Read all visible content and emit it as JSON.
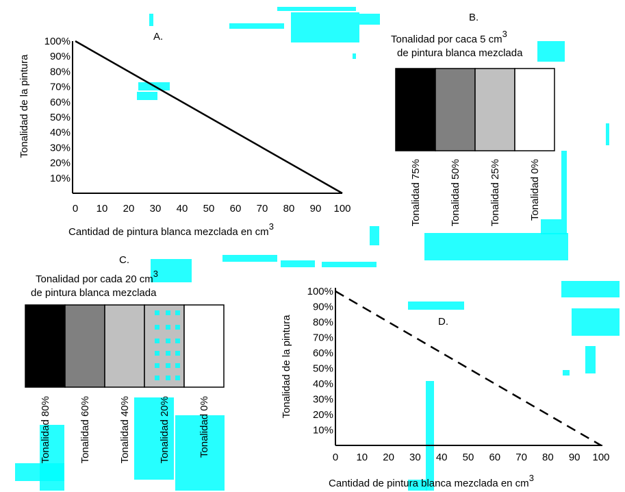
{
  "panels": {
    "a": {
      "letter": "A.",
      "y_label": "Tonalidad de la pintura",
      "x_label": "Cantidad de pintura blanca mezclada en cm",
      "x_label_sup": "3",
      "y_ticks": [
        "100%",
        "90%",
        "80%",
        "70%",
        "60%",
        "50%",
        "40%",
        "30%",
        "20%",
        "10%"
      ],
      "x_ticks": [
        "0",
        "10",
        "20",
        "30",
        "40",
        "50",
        "60",
        "70",
        "80",
        "90",
        "100"
      ],
      "line_style": "solid",
      "line_from": [
        0,
        100
      ],
      "line_to": [
        100,
        0
      ]
    },
    "b": {
      "letter": "B.",
      "title_line1": "Tonalidad por caca 5 cm",
      "title_sup": "3",
      "title_line2": "de pintura blanca mezclada",
      "swatch_colors": [
        "#000000",
        "#808080",
        "#c0c0c0",
        "#ffffff"
      ],
      "labels": [
        "Tonalidad 75%",
        "Tonalidad 50%",
        "Tonalidad 25%",
        "Tonalidad 0%"
      ]
    },
    "c": {
      "letter": "C.",
      "title_line1": "Tonalidad por cada 20 cm",
      "title_sup": "3",
      "title_line2": "de pintura blanca mezclada",
      "swatch_colors": [
        "#000000",
        "#808080",
        "#c0c0c0",
        "#c0c0c0",
        "#ffffff"
      ],
      "labels": [
        "Tonalidad 80%",
        "Tonalidad 60%",
        "Tonalidad 40%",
        "Tonalidad 20%",
        "Tonalidad 0%"
      ]
    },
    "d": {
      "letter": "D.",
      "y_label": "Tonalidad de la pintura",
      "x_label": "Cantidad de pintura blanca mezclada en cm",
      "x_label_sup": "3",
      "y_ticks": [
        "100%",
        "90%",
        "80%",
        "70%",
        "60%",
        "50%",
        "40%",
        "30%",
        "20%",
        "10%"
      ],
      "x_ticks": [
        "0",
        "10",
        "20",
        "30",
        "40",
        "50",
        "60",
        "70",
        "80",
        "90",
        "100"
      ],
      "line_style": "dashed",
      "line_from": [
        0,
        100
      ],
      "line_to": [
        100,
        0
      ]
    }
  },
  "colors": {
    "artifact": "#00ffff"
  }
}
